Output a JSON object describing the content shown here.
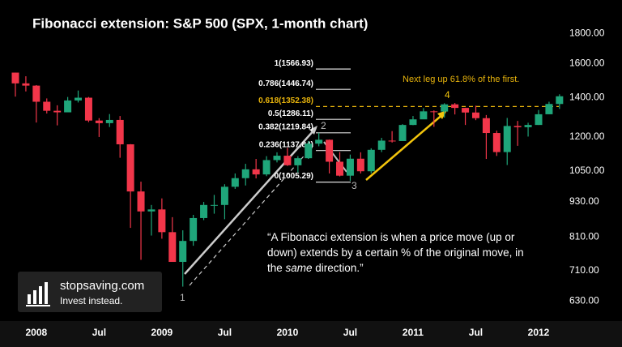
{
  "chart_data": {
    "type": "candlestick",
    "title": "Fibonacci extension: S&P 500 (SPX, 1-month chart)",
    "categories": [
      null,
      null,
      "2008",
      null,
      null,
      null,
      null,
      null,
      "Jul",
      null,
      null,
      null,
      null,
      null,
      "2009",
      null,
      null,
      null,
      null,
      null,
      "Jul",
      null,
      null,
      null,
      null,
      null,
      "2010",
      null,
      null,
      null,
      null,
      null,
      "Jul",
      null,
      null,
      null,
      null,
      null,
      "2011",
      null,
      null,
      null,
      null,
      null,
      "Jul",
      null,
      null,
      null,
      null,
      null,
      "2012",
      null,
      null
    ],
    "open": [
      1545,
      1481,
      1468,
      1378,
      1330,
      1322,
      1385,
      1400,
      1280,
      1267,
      1283,
      1166,
      969,
      896,
      903,
      826,
      735,
      798,
      873,
      919,
      919,
      987,
      1021,
      1057,
      1036,
      1096,
      1115,
      1074,
      1104,
      1169,
      1187,
      1089,
      1031,
      1102,
      1049,
      1141,
      1183,
      1181,
      1258,
      1286,
      1327,
      1326,
      1364,
      1345,
      1321,
      1292,
      1219,
      1131,
      1253,
      1247,
      1258,
      1312,
      1366
    ],
    "high": [
      1545,
      1523,
      1471,
      1396,
      1359,
      1404,
      1440,
      1404,
      1292,
      1313,
      1303,
      1167,
      1007,
      919,
      943,
      876,
      832,
      884,
      930,
      956,
      997,
      1040,
      1080,
      1101,
      1113,
      1130,
      1150,
      1113,
      1181,
      1220,
      1188,
      1131,
      1120,
      1130,
      1148,
      1196,
      1228,
      1262,
      1303,
      1344,
      1332,
      1370,
      1371,
      1346,
      1357,
      1308,
      1230,
      1293,
      1278,
      1269,
      1334,
      1378,
      1419
    ],
    "low": [
      1406,
      1435,
      1270,
      1316,
      1256,
      1324,
      1374,
      1272,
      1200,
      1248,
      1106,
      840,
      741,
      815,
      805,
      735,
      667,
      783,
      866,
      888,
      869,
      979,
      992,
      1020,
      1029,
      1086,
      1071,
      1044,
      1101,
      1157,
      1040,
      1028,
      1010,
      1040,
      1040,
      1131,
      1174,
      1181,
      1257,
      1289,
      1249,
      1295,
      1311,
      1258,
      1282,
      1101,
      1114,
      1075,
      1159,
      1202,
      1258,
      1312,
      1340
    ],
    "close": [
      1481,
      1468,
      1378,
      1330,
      1322,
      1385,
      1400,
      1280,
      1267,
      1283,
      1166,
      969,
      896,
      903,
      826,
      735,
      798,
      873,
      919,
      919,
      987,
      1021,
      1057,
      1036,
      1096,
      1115,
      1074,
      1104,
      1169,
      1187,
      1089,
      1031,
      1102,
      1049,
      1141,
      1183,
      1181,
      1258,
      1286,
      1327,
      1326,
      1364,
      1345,
      1321,
      1292,
      1219,
      1131,
      1253,
      1247,
      1258,
      1312,
      1366,
      1408
    ],
    "up_color": "#1fa67a",
    "down_color": "#f2364a",
    "log_scale": true,
    "ylim": [
      579,
      1990
    ],
    "yticks": [
      {
        "value": 630,
        "label": "630.00"
      },
      {
        "value": 710,
        "label": "710.00"
      },
      {
        "value": 810,
        "label": "810.00"
      },
      {
        "value": 930,
        "label": "930.00"
      },
      {
        "value": 1050,
        "label": "1050.00"
      },
      {
        "value": 1200,
        "label": "1200.00"
      },
      {
        "value": 1400,
        "label": "1400.00"
      },
      {
        "value": 1600,
        "label": "1600.00"
      },
      {
        "value": 1800,
        "label": "1800.00"
      }
    ],
    "fib_levels": [
      {
        "label": "1(1566.93)",
        "value": 1566.93
      },
      {
        "label": "0.786(1446.74)",
        "value": 1446.74
      },
      {
        "label": "0.618(1352.38)",
        "value": 1352.38,
        "color": "#e8b40c"
      },
      {
        "label": "0.5(1286.11)",
        "value": 1286.11
      },
      {
        "label": "0.382(1219.84)",
        "value": 1219.84
      },
      {
        "label": "0.236(1137.84)",
        "value": 1137.84
      },
      {
        "label": "0(1005.29)",
        "value": 1005.29
      }
    ],
    "annotations": {
      "next_leg": "Next leg up 61.8% of the first.",
      "p1": "1",
      "p2": "2",
      "p3": "3",
      "p4": "4",
      "quote_before": "“A Fibonacci extension is when a price move (up or down) extends by a certain % of the original move, in the ",
      "quote_em": "same",
      "quote_after": " direction.”"
    },
    "logo": {
      "name": "stopsaving.com",
      "tagline": "Invest instead."
    }
  }
}
